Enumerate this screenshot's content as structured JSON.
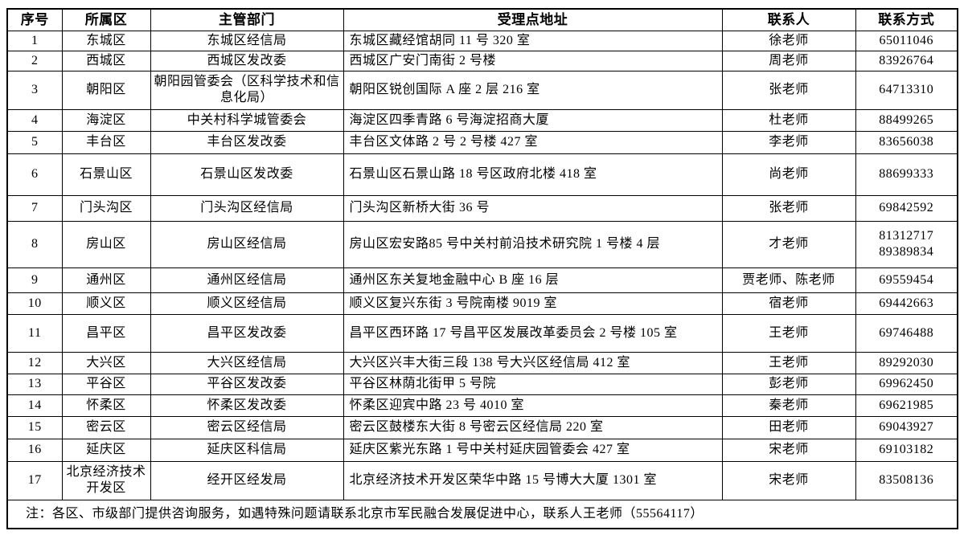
{
  "table": {
    "headers": {
      "index": "序号",
      "district": "所属区",
      "department": "主管部门",
      "address": "受理点地址",
      "contact": "联系人",
      "phone": "联系方式"
    },
    "rows": [
      {
        "index": "1",
        "district": "东城区",
        "department": "东城区经信局",
        "address": "东城区藏经馆胡同 11 号 320 室",
        "contact": "徐老师",
        "phone": "65011046"
      },
      {
        "index": "2",
        "district": "西城区",
        "department": "西城区发改委",
        "address": "西城区广安门南街 2 号楼",
        "contact": "周老师",
        "phone": "83926764"
      },
      {
        "index": "3",
        "district": "朝阳区",
        "department": "朝阳园管委会（区科学技术和信息化局）",
        "address": "朝阳区锐创国际 A 座 2 层 216 室",
        "contact": "张老师",
        "phone": "64713310"
      },
      {
        "index": "4",
        "district": "海淀区",
        "department": "中关村科学城管委会",
        "address": "海淀区四季青路 6 号海淀招商大厦",
        "contact": "杜老师",
        "phone": "88499265"
      },
      {
        "index": "5",
        "district": "丰台区",
        "department": "丰台区发改委",
        "address": "丰台区文体路 2 号 2 号楼 427 室",
        "contact": "李老师",
        "phone": "83656038"
      },
      {
        "index": "6",
        "district": "石景山区",
        "department": "石景山区发改委",
        "address": "石景山区石景山路 18 号区政府北楼 418 室",
        "contact": "尚老师",
        "phone": "88699333"
      },
      {
        "index": "7",
        "district": "门头沟区",
        "department": "门头沟区经信局",
        "address": "门头沟区新桥大街 36 号",
        "contact": "张老师",
        "phone": "69842592"
      },
      {
        "index": "8",
        "district": "房山区",
        "department": "房山区经信局",
        "address": "房山区宏安路85 号中关村前沿技术研究院 1 号楼 4 层",
        "contact": "才老师",
        "phone": "81312717\n89389834"
      },
      {
        "index": "9",
        "district": "通州区",
        "department": "通州区经信局",
        "address": "通州区东关复地金融中心 B 座 16 层",
        "contact": "贾老师、陈老师",
        "phone": "69559454"
      },
      {
        "index": "10",
        "district": "顺义区",
        "department": "顺义区经信局",
        "address": "顺义区复兴东街 3 号院南楼 9019 室",
        "contact": "宿老师",
        "phone": "69442663"
      },
      {
        "index": "11",
        "district": "昌平区",
        "department": "昌平区发改委",
        "address": "昌平区西环路 17 号昌平区发展改革委员会 2 号楼 105 室",
        "contact": "王老师",
        "phone": "69746488"
      },
      {
        "index": "12",
        "district": "大兴区",
        "department": "大兴区经信局",
        "address": "大兴区兴丰大街三段 138 号大兴区经信局 412 室",
        "contact": "王老师",
        "phone": "89292030"
      },
      {
        "index": "13",
        "district": "平谷区",
        "department": "平谷区发改委",
        "address": "平谷区林荫北街甲 5 号院",
        "contact": "彭老师",
        "phone": "69962450"
      },
      {
        "index": "14",
        "district": "怀柔区",
        "department": "怀柔区发改委",
        "address": "怀柔区迎宾中路 23 号 4010 室",
        "contact": "秦老师",
        "phone": "69621985"
      },
      {
        "index": "15",
        "district": "密云区",
        "department": "密云区经信局",
        "address": "密云区鼓楼东大街 8 号密云区经信局 220 室",
        "contact": "田老师",
        "phone": "69043927"
      },
      {
        "index": "16",
        "district": "延庆区",
        "department": "延庆区科信局",
        "address": "延庆区紫光东路 1 号中关村延庆园管委会 427 室",
        "contact": "宋老师",
        "phone": "69103182"
      },
      {
        "index": "17",
        "district": "北京经济技术开发区",
        "department": "经开区经发局",
        "address": "北京经济技术开发区荣华中路 15 号博大大厦 1301 室",
        "contact": "宋老师",
        "phone": "83508136"
      }
    ],
    "note": "注：各区、市级部门提供咨询服务，如遇特殊问题请联系北京市军民融合发展促进中心，联系人王老师（55564117）"
  },
  "colors": {
    "border": "#000000",
    "background": "#ffffff",
    "text": "#000000"
  }
}
